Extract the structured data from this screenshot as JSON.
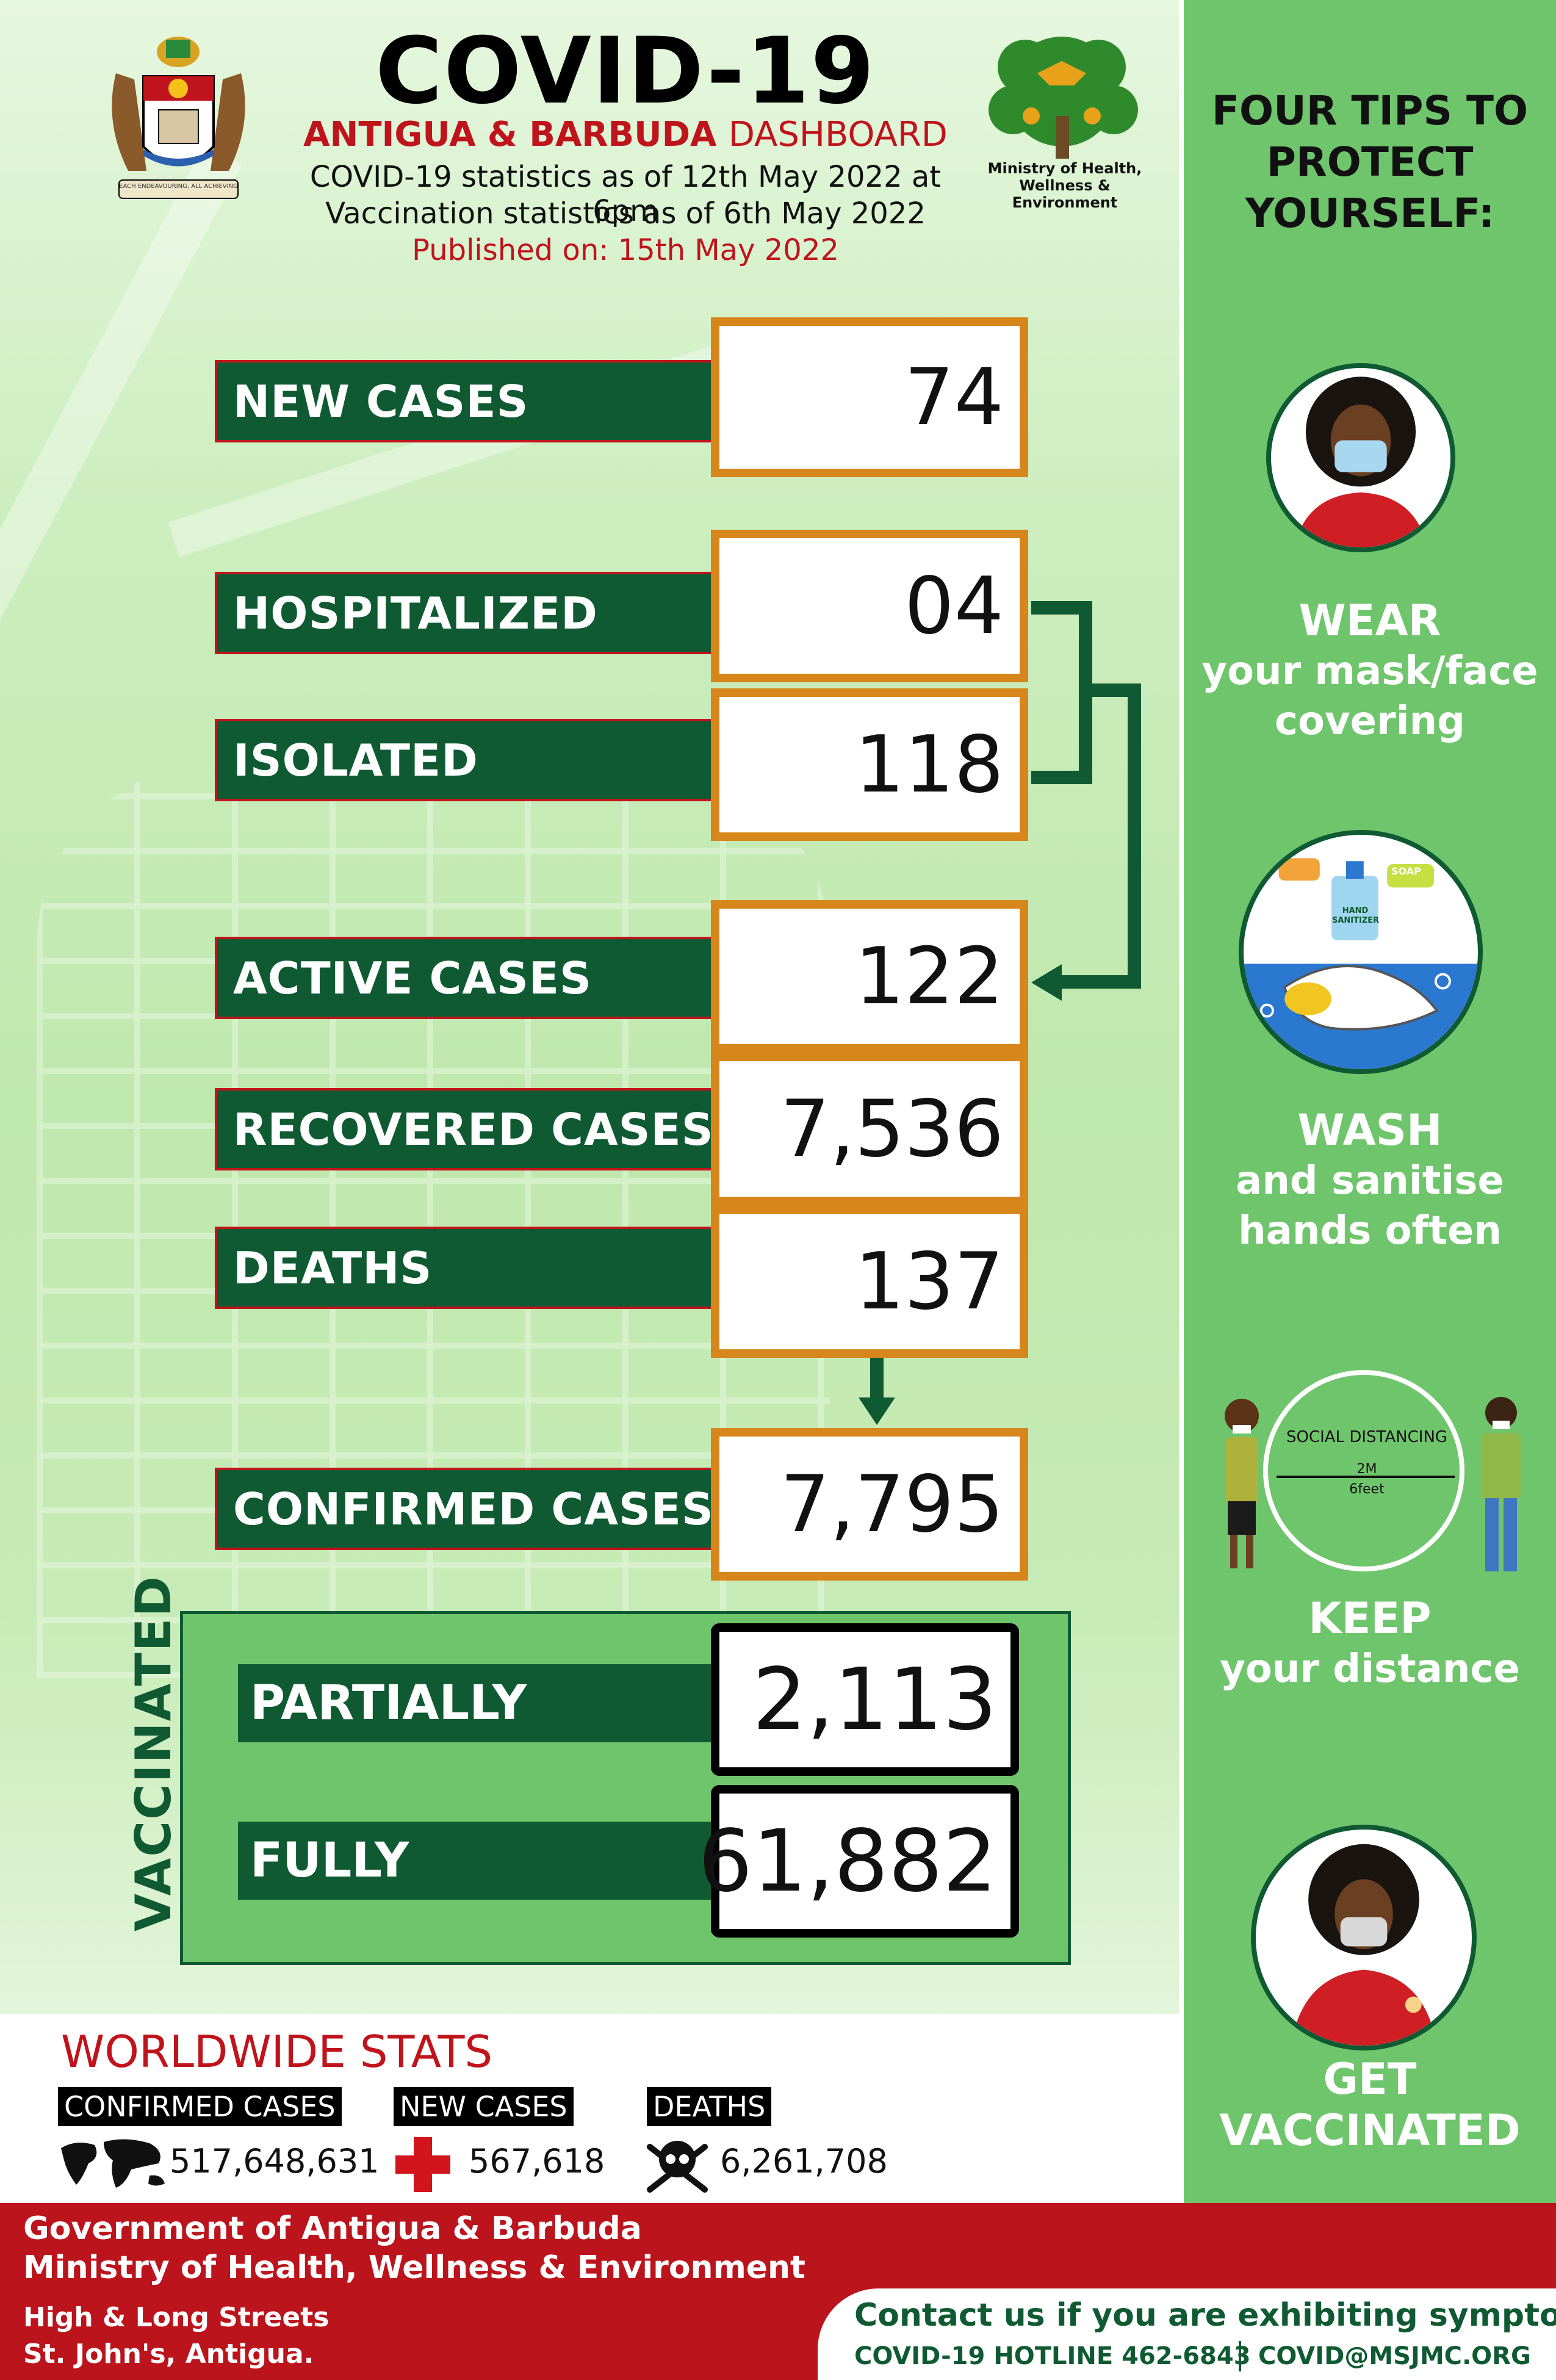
{
  "header": {
    "title": "COVID-19",
    "subtitle_bold": "ANTIGUA & BARBUDA",
    "subtitle_light": "DASHBOARD",
    "stats_as_of": "COVID-19 statistics as of 12th May 2022 at 6pm",
    "vacc_as_of": "Vaccination statistics as of 6th May 2022",
    "published": "Published on: 15th May 2022",
    "crest_motto": "EACH ENDEAVOURING, ALL ACHIEVING",
    "ministry_logo_text": "Ministry of Health, Wellness & Environment"
  },
  "stats": {
    "new_cases": {
      "label": "NEW CASES",
      "value": "74"
    },
    "hospitalized": {
      "label": "HOSPITALIZED",
      "value": "04"
    },
    "isolated": {
      "label": "ISOLATED",
      "value": "118"
    },
    "active_cases": {
      "label": "ACTIVE CASES",
      "value": "122"
    },
    "recovered_cases": {
      "label": "RECOVERED CASES",
      "value": "7,536"
    },
    "deaths": {
      "label": "DEATHS",
      "value": "137"
    },
    "confirmed_cases": {
      "label": "CONFIRMED CASES",
      "value": "7,795"
    }
  },
  "vaccinated": {
    "heading": "VACCINATED",
    "partially": {
      "label": "PARTIALLY",
      "value": "2,113"
    },
    "fully": {
      "label": "FULLY",
      "value": "61,882"
    }
  },
  "worldwide": {
    "title": "WORLDWIDE STATS",
    "confirmed": {
      "label": "CONFIRMED CASES",
      "value": "517,648,631"
    },
    "new_cases": {
      "label": "NEW CASES",
      "value": "567,618"
    },
    "deaths": {
      "label": "DEATHS",
      "value": "6,261,708"
    }
  },
  "tips": {
    "title": "FOUR TIPS TO PROTECT YOURSELF:",
    "items": [
      {
        "title": "WEAR",
        "body": "your mask/face covering"
      },
      {
        "title": "WASH",
        "body": "and sanitise hands often"
      },
      {
        "title": "KEEP",
        "body": "your distance"
      },
      {
        "title": "GET",
        "body": "VACCINATED"
      }
    ],
    "distancing": {
      "caption": "SOCIAL DISTANCING",
      "metric": "2M",
      "imperial": "6feet"
    },
    "soap_label": "SOAP",
    "sanitizer_label": "HAND SANITIZER"
  },
  "footer": {
    "gov": "Government of Antigua & Barbuda",
    "ministry": "Ministry of Health, Wellness & Environment",
    "address1": "High & Long Streets",
    "address2": "St. John's, Antigua.",
    "contact_head": "Contact us if you are exhibiting symptoms",
    "hotline": "COVID-19 HOTLINE 462-6843",
    "email": "COVID@MSJMC.ORG"
  },
  "colors": {
    "dark_green": "#0f5a32",
    "orange_border": "#d6861b",
    "red": "#c0141c",
    "sidebar_green": "#6fc56c"
  }
}
